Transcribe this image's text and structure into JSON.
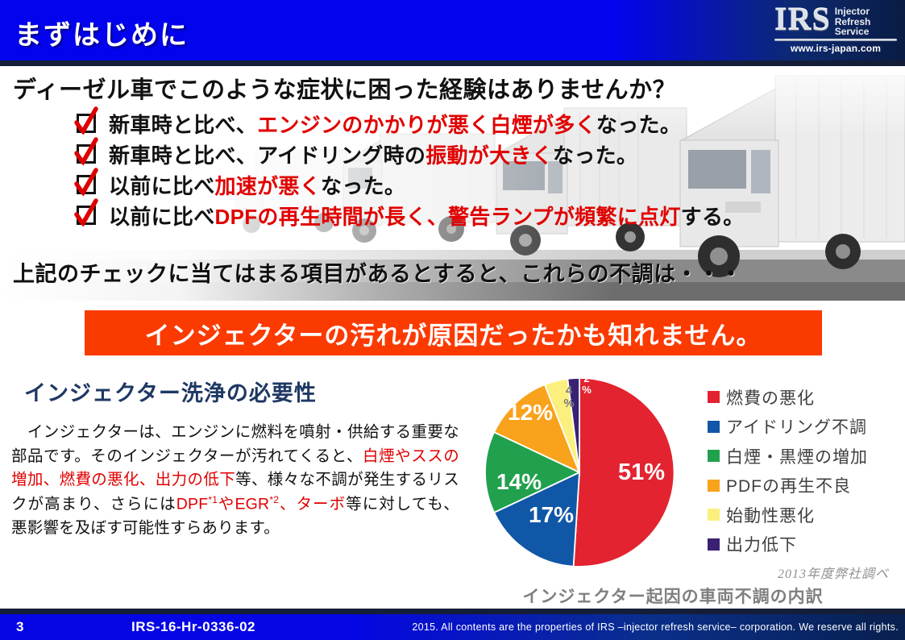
{
  "header": {
    "title": "まずはじめに",
    "logo": {
      "acronym": "IRS",
      "line1": "Injector",
      "line2": "Refresh",
      "line3": "Service",
      "url": "www.irs-japan.com"
    }
  },
  "intro": {
    "question": "ディーゼル車でこのような症状に困った経験はありませんか？",
    "checklist": [
      {
        "pre": "新車時と比べ、",
        "highlight": "エンジンのかかりが悪く白煙が多く",
        "post": "なった。"
      },
      {
        "pre": "新車時と比べ、アイドリング時の",
        "highlight": "振動が大きく",
        "post": "なった。"
      },
      {
        "pre": "以前に比べ",
        "highlight": "加速が悪く",
        "post": "なった。"
      },
      {
        "pre": "以前に比べ",
        "highlight": "DPFの再生時間が長く、警告ランプが頻繁に点灯",
        "post": "する。"
      }
    ],
    "conclusion_lead": "上記のチェックに当てはまる項目があるとすると、これらの不調は・・・"
  },
  "banner": {
    "text": "インジェクターの汚れが原因だったかも知れません。",
    "bg_color": "#fb3a00"
  },
  "section": {
    "title": "インジェクター洗浄の必要性",
    "paragraph": {
      "p1": "　インジェクターは、エンジンに燃料を噴射・供給する重要な部品です。そのインジェクターが汚れてくると、",
      "r1": "白煙やススの増加、燃費の悪化、出力の低下",
      "p2": "等、様々な不調が発生するリスクが高まり、さらには",
      "r2a": "DPF",
      "sup1": "*1",
      "r2b": "やEGR",
      "sup2": "*2",
      "r2c": "、ターボ",
      "p3": "等に対しても、悪影響を及ぼす可能性すらあります。"
    }
  },
  "chart_data": {
    "type": "pie",
    "title": "インジェクター起因の車両不調の内訳",
    "source_note": "2013年度弊社調べ",
    "start_angle": "top",
    "direction": "clockwise",
    "legend_position": "right",
    "slices": [
      {
        "label": "燃費の悪化",
        "value": 51,
        "color": "#e32330",
        "pct_label": "51%"
      },
      {
        "label": "アイドリング不調",
        "value": 17,
        "color": "#1057a7",
        "pct_label": "17%"
      },
      {
        "label": "白煙・黒煙の増加",
        "value": 14,
        "color": "#21a14d",
        "pct_label": "14%"
      },
      {
        "label": "PDFの再生不良",
        "value": 12,
        "color": "#f9a21b",
        "pct_label": "12%"
      },
      {
        "label": "始動性悪化",
        "value": 4,
        "color": "#fbf07d",
        "pct_label": "4\n%"
      },
      {
        "label": "出力低下",
        "value": 2,
        "color": "#3a2173",
        "pct_label": "2\n%"
      }
    ]
  },
  "footer": {
    "page_number": "3",
    "doc_code": "IRS-16-Hr-0336-02",
    "copyright": "2015. All contents are the properties of IRS –injector refresh service– corporation. We reserve all rights."
  }
}
